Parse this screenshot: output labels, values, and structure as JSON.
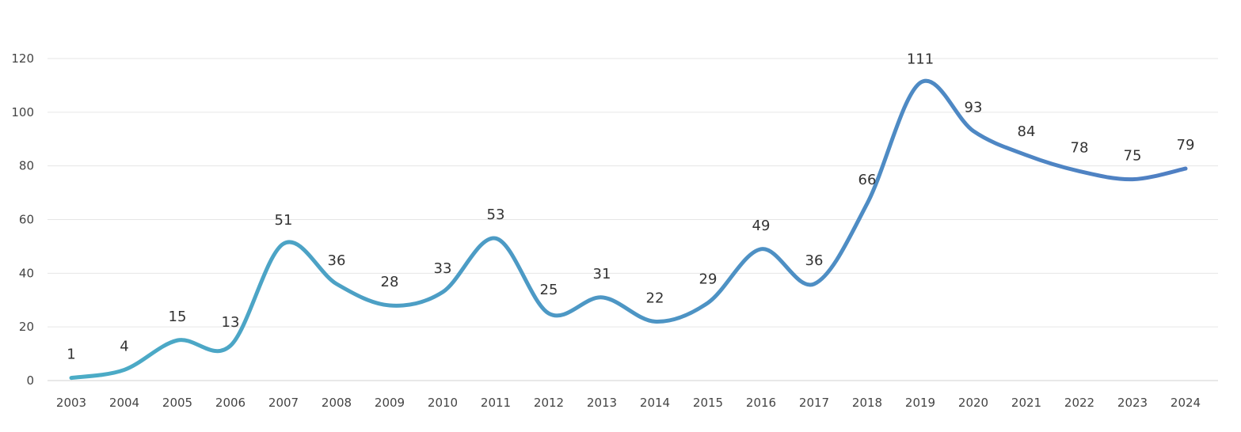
{
  "chart_data": {
    "type": "line",
    "title": "",
    "xlabel": "",
    "ylabel": "",
    "categories": [
      "2003",
      "2004",
      "2005",
      "2006",
      "2007",
      "2008",
      "2009",
      "2010",
      "2011",
      "2012",
      "2013",
      "2014",
      "2015",
      "2016",
      "2017",
      "2018",
      "2019",
      "2020",
      "2021",
      "2022",
      "2023",
      "2024"
    ],
    "series": [
      {
        "values": [
          1,
          4,
          15,
          13,
          51,
          36,
          28,
          33,
          53,
          25,
          31,
          22,
          29,
          49,
          36,
          66,
          111,
          93,
          84,
          78,
          75,
          79
        ]
      }
    ],
    "ylim": [
      0,
      120
    ],
    "yticks": [
      0,
      20,
      40,
      60,
      80,
      100,
      120
    ],
    "grid": "horizontal",
    "legend": "none",
    "data_labels": true,
    "smooth": true,
    "colors": {
      "line_start": "#4bacc6",
      "line_end": "#4f7fc3",
      "grid": "#e6e6e6",
      "text": "#333333"
    }
  }
}
